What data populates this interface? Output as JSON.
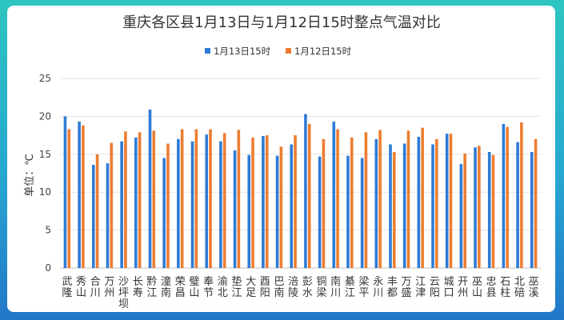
{
  "chart_data": {
    "type": "bar",
    "title": "重庆各区县1月13日与1月12日15时整点气温对比",
    "ylabel": "单位：℃",
    "xlabel": "",
    "ylim": [
      0,
      25
    ],
    "yticks": [
      0,
      5,
      10,
      15,
      20,
      25
    ],
    "grid": true,
    "legend_position": "top-center",
    "colors": [
      "#2e7bd6",
      "#ed7d31"
    ],
    "categories": [
      "武隆",
      "秀山",
      "合川",
      "万州",
      "沙坪坝",
      "长寿",
      "黔江",
      "潼南",
      "荣昌",
      "璧山",
      "奉节",
      "渝北",
      "垫江",
      "大足",
      "酉阳",
      "巴南",
      "涪陵",
      "彭水",
      "铜梁",
      "南川",
      "綦江",
      "梁平",
      "永川",
      "丰都",
      "万盛",
      "江津",
      "云阳",
      "城口",
      "开州",
      "巫山",
      "忠县",
      "石柱",
      "北碚",
      "巫溪"
    ],
    "series": [
      {
        "name": "1月13日15时",
        "values": [
          20.0,
          19.3,
          13.6,
          13.8,
          16.7,
          17.2,
          20.9,
          14.5,
          17.0,
          16.7,
          17.6,
          16.7,
          15.5,
          14.9,
          17.4,
          14.8,
          16.3,
          20.3,
          14.7,
          19.3,
          14.8,
          14.5,
          17.0,
          16.3,
          16.4,
          17.3,
          16.3,
          17.7,
          13.7,
          15.9,
          15.3,
          19.0,
          16.6,
          15.3
        ]
      },
      {
        "name": "1月12日15时",
        "values": [
          18.3,
          18.8,
          15.0,
          16.5,
          18.0,
          17.9,
          18.1,
          16.4,
          18.3,
          18.3,
          18.3,
          17.8,
          18.2,
          17.2,
          17.5,
          16.0,
          17.5,
          19.0,
          17.0,
          18.3,
          17.2,
          17.9,
          18.2,
          15.3,
          18.1,
          18.5,
          17.0,
          17.7,
          15.1,
          16.1,
          14.9,
          18.6,
          19.2,
          17.0
        ]
      }
    ]
  }
}
